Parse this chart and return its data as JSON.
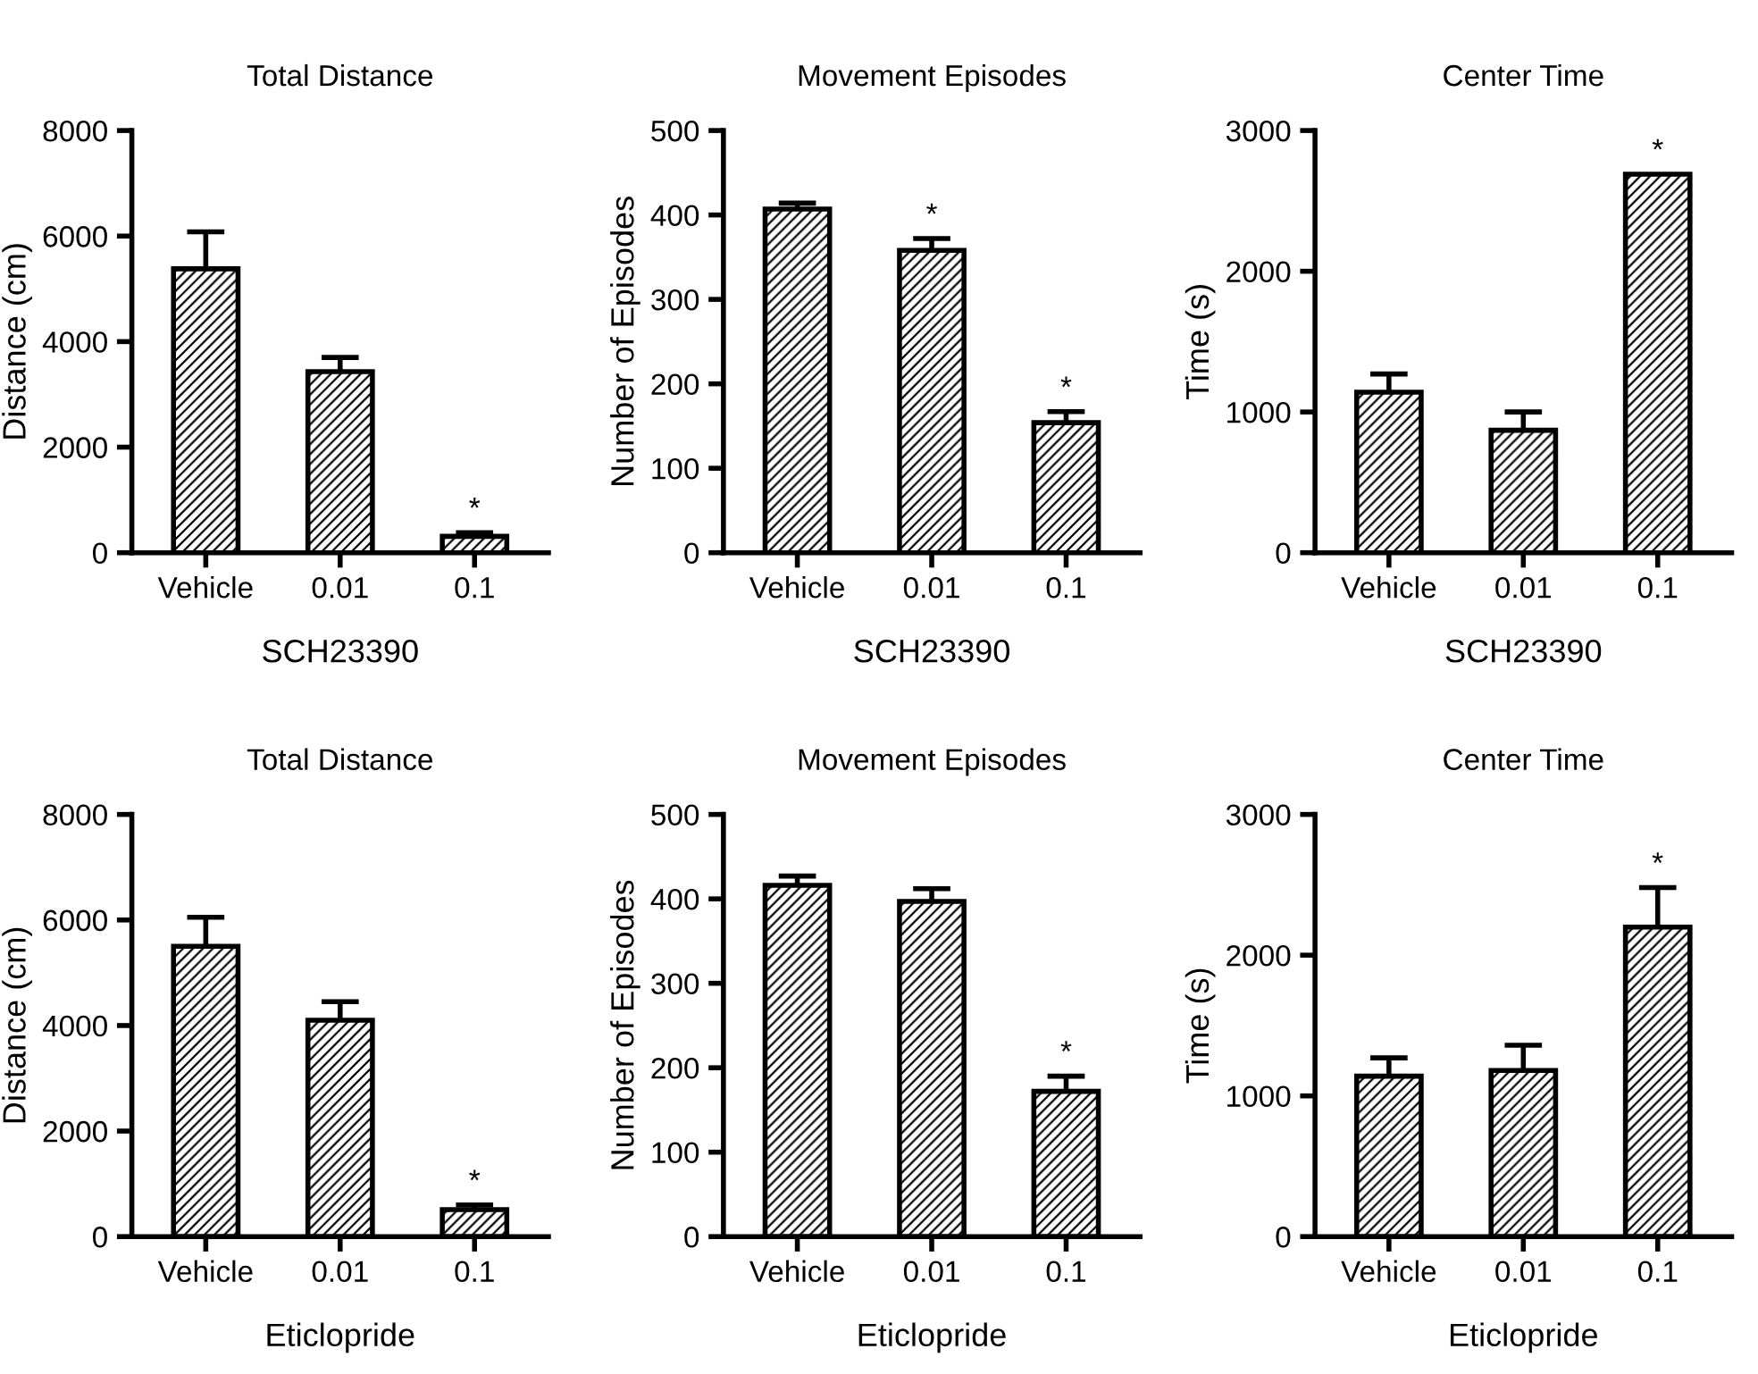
{
  "chart_data": [
    {
      "type": "bar",
      "title": "Total Distance",
      "xlabel": "SCH23390",
      "ylabel": "Distance (cm)",
      "categories": [
        "Vehicle",
        "0.01",
        "0.1"
      ],
      "color": "#000000",
      "values": [
        5380,
        3430,
        310
      ],
      "errors": [
        [
          5380,
          6080
        ],
        [
          3430,
          3700
        ],
        [
          310,
          380
        ]
      ],
      "ylim": [
        0,
        8000
      ],
      "yticks": [
        0,
        2000,
        4000,
        6000,
        8000
      ],
      "grid": false,
      "annotations": [
        {
          "text": "*",
          "x": "0.1",
          "y": 380
        }
      ]
    },
    {
      "type": "bar",
      "title": "Movement Episodes",
      "xlabel": "SCH23390",
      "ylabel": "Number of Episodes",
      "categories": [
        "Vehicle",
        "0.01",
        "0.1"
      ],
      "color": "#000000",
      "values": [
        407,
        358,
        154
      ],
      "errors": [
        [
          407,
          414
        ],
        [
          358,
          372
        ],
        [
          154,
          167
        ]
      ],
      "ylim": [
        0,
        500
      ],
      "yticks": [
        0,
        100,
        200,
        300,
        400,
        500
      ],
      "grid": false,
      "annotations": [
        {
          "text": "*",
          "x": "0.01",
          "y": 372
        },
        {
          "text": "*",
          "x": "0.1",
          "y": 167
        }
      ]
    },
    {
      "type": "bar",
      "title": "Center Time",
      "xlabel": "SCH23390",
      "ylabel": "Time (s)",
      "categories": [
        "Vehicle",
        "0.01",
        "0.1"
      ],
      "color": "#000000",
      "values": [
        1140,
        870,
        2690
      ],
      "errors": [
        [
          1140,
          1270
        ],
        [
          870,
          1000
        ],
        null
      ],
      "ylim": [
        0,
        3000
      ],
      "yticks": [
        0,
        1000,
        2000,
        3000
      ],
      "grid": false,
      "annotations": [
        {
          "text": "*",
          "x": "0.1",
          "y": 2690
        }
      ]
    },
    {
      "type": "bar",
      "title": "Total Distance",
      "xlabel": "Eticlopride",
      "ylabel": "Distance (cm)",
      "categories": [
        "Vehicle",
        "0.01",
        "0.1"
      ],
      "color": "#000000",
      "values": [
        5500,
        4100,
        510
      ],
      "errors": [
        [
          5500,
          6050
        ],
        [
          4100,
          4450
        ],
        [
          510,
          600
        ]
      ],
      "ylim": [
        0,
        8000
      ],
      "yticks": [
        0,
        2000,
        4000,
        6000,
        8000
      ],
      "grid": false,
      "annotations": [
        {
          "text": "*",
          "x": "0.1",
          "y": 600
        }
      ]
    },
    {
      "type": "bar",
      "title": "Movement Episodes",
      "xlabel": "Eticlopride",
      "ylabel": "Number of Episodes",
      "categories": [
        "Vehicle",
        "0.01",
        "0.1"
      ],
      "color": "#000000",
      "values": [
        416,
        397,
        172
      ],
      "errors": [
        [
          416,
          427
        ],
        [
          397,
          412
        ],
        [
          172,
          190
        ]
      ],
      "ylim": [
        0,
        500
      ],
      "yticks": [
        0,
        100,
        200,
        300,
        400,
        500
      ],
      "grid": false,
      "annotations": [
        {
          "text": "*",
          "x": "0.1",
          "y": 190
        }
      ]
    },
    {
      "type": "bar",
      "title": "Center Time",
      "xlabel": "Eticlopride",
      "ylabel": "Time (s)",
      "categories": [
        "Vehicle",
        "0.01",
        "0.1"
      ],
      "color": "#000000",
      "values": [
        1140,
        1180,
        2200
      ],
      "errors": [
        [
          1140,
          1270
        ],
        [
          1180,
          1360
        ],
        [
          2200,
          2480
        ]
      ],
      "ylim": [
        0,
        3000
      ],
      "yticks": [
        0,
        1000,
        2000,
        3000
      ],
      "grid": false,
      "annotations": [
        {
          "text": "*",
          "x": "0.1",
          "y": 2480
        }
      ]
    }
  ]
}
